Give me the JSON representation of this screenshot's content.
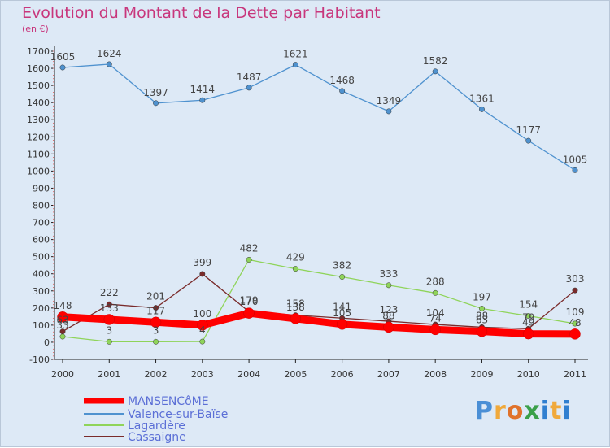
{
  "chart_data": {
    "type": "line",
    "title": "Evolution du Montant de la Dette par Habitant",
    "unit_label": "(en €)",
    "x": [
      "2000",
      "2001",
      "2002",
      "2003",
      "2004",
      "2005",
      "2006",
      "2007",
      "2008",
      "2009",
      "2010",
      "2011"
    ],
    "ylim": [
      -100,
      1700
    ],
    "yticks": [
      -100,
      0,
      100,
      200,
      300,
      400,
      500,
      600,
      700,
      800,
      900,
      1000,
      1100,
      1200,
      1300,
      1400,
      1500,
      1600,
      1700
    ],
    "grid": false,
    "legend_position": "bottom-left",
    "series": [
      {
        "name": "MANSENCôME",
        "color": "#ff0000",
        "values": [
          148,
          133,
          117,
          100,
          170,
          138,
          105,
          88,
          74,
          63,
          49,
          48
        ]
      },
      {
        "name": "Valence-sur-Baïse",
        "color": "#4f92cf",
        "values": [
          1605,
          1624,
          1397,
          1414,
          1487,
          1621,
          1468,
          1349,
          1582,
          1361,
          1177,
          1005
        ]
      },
      {
        "name": "Lagardère",
        "color": "#8fd45a",
        "values": [
          33,
          3,
          3,
          4,
          482,
          429,
          382,
          333,
          288,
          197,
          154,
          109
        ]
      },
      {
        "name": "Cassaigne",
        "color": "#7a2b2b",
        "values": [
          63,
          222,
          201,
          399,
          179,
          158,
          141,
          123,
          104,
          88,
          79,
          303
        ]
      }
    ],
    "data_labels": {
      "MANSENCôME": [
        "148",
        "133",
        "117",
        "100",
        "170",
        "138",
        "105",
        "88",
        "74",
        "63",
        "49",
        "48"
      ],
      "Valence-sur-Baïse": [
        "1605",
        "1624",
        "1397",
        "1414",
        "1487",
        "1621",
        "1468",
        "1349",
        "1582",
        "1361",
        "1177",
        "1005"
      ],
      "Lagardère": [
        "33",
        "3",
        "3",
        "4",
        "482",
        "429",
        "382",
        "333",
        "288",
        "197",
        "154",
        "109"
      ],
      "Cassaigne": [
        "63",
        "222",
        "201",
        "399",
        "179",
        "158",
        "141",
        "123",
        "104",
        "88",
        "79",
        "303"
      ]
    }
  },
  "logo_text": "Proxiti"
}
